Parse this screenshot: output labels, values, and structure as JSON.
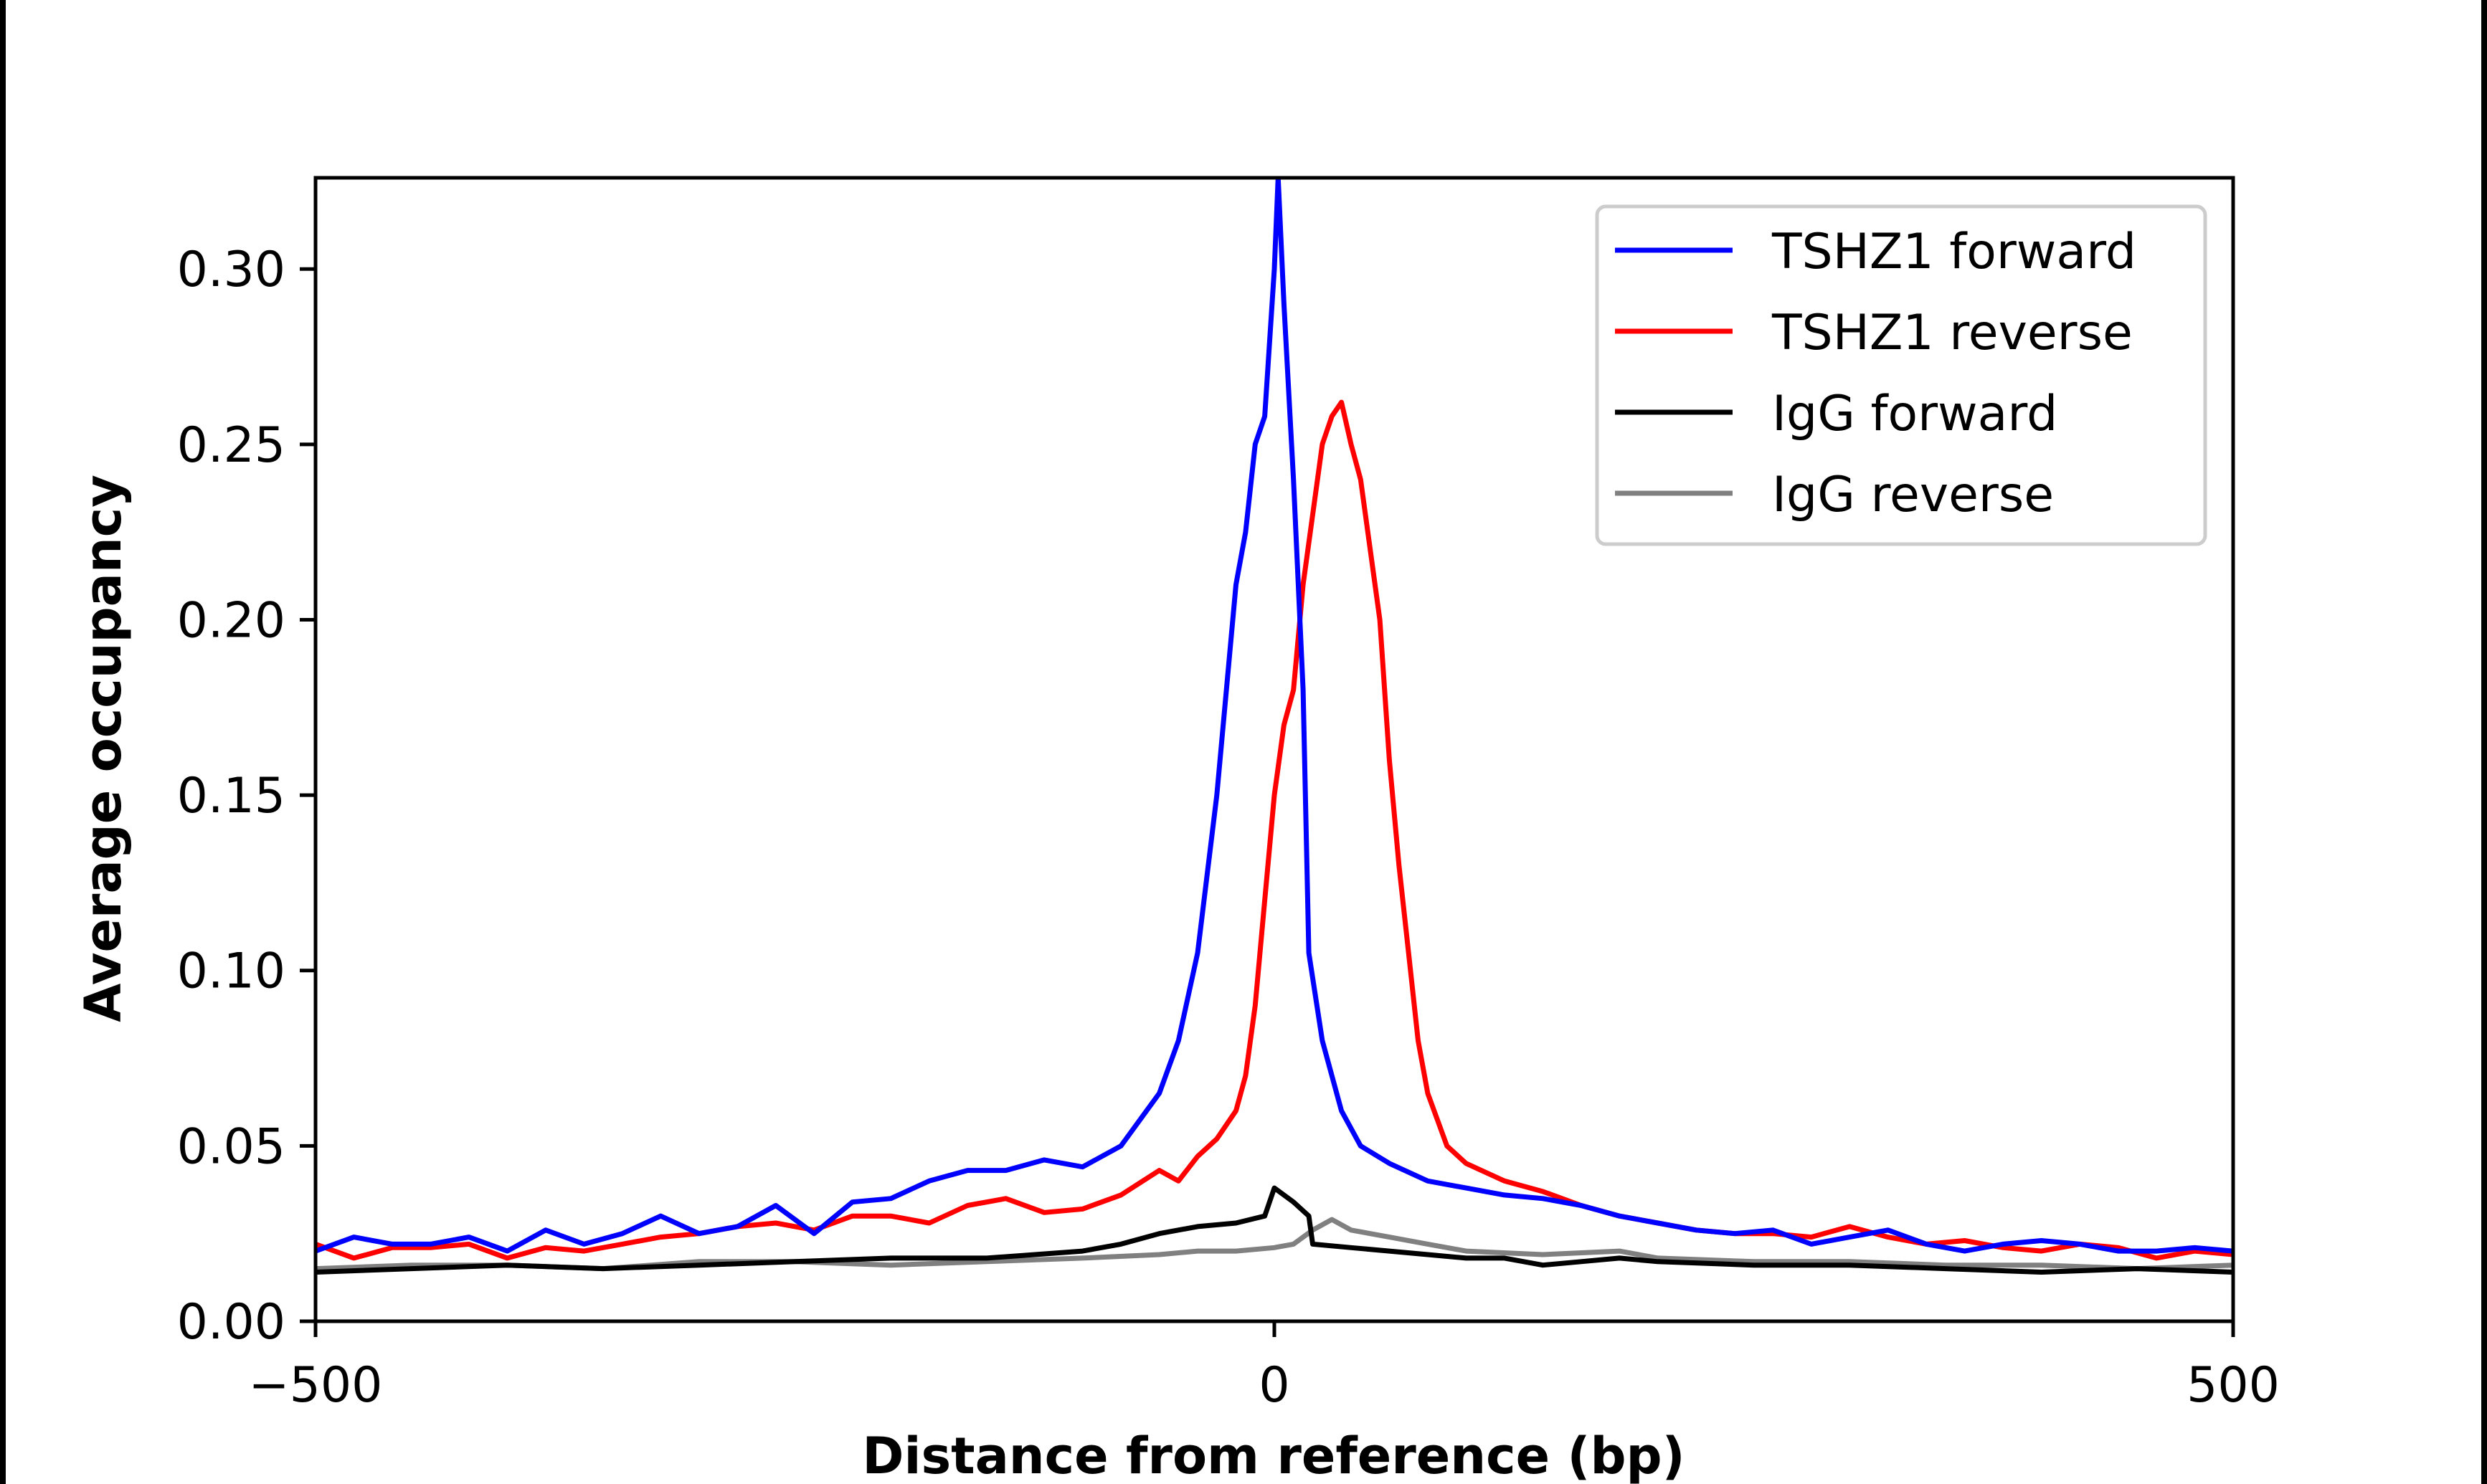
{
  "chart_data": {
    "type": "line",
    "title": "",
    "xlabel": "Distance from reference (bp)",
    "ylabel": "Average occupancy",
    "xlim": [
      -500,
      500
    ],
    "ylim": [
      0,
      0.326
    ],
    "xticks": [
      -500,
      0,
      500
    ],
    "xtick_labels": [
      "−500",
      "0",
      "500"
    ],
    "yticks": [
      0,
      0.05,
      0.1,
      0.15,
      0.2,
      0.25,
      0.3
    ],
    "ytick_labels": [
      "0.00",
      "0.05",
      "0.10",
      "0.15",
      "0.20",
      "0.25",
      "0.30"
    ],
    "grid": false,
    "legend_position": "top-right",
    "series": [
      {
        "name": "TSHZ1 forward",
        "color": "#0000ff",
        "x": [
          -500,
          -480,
          -460,
          -440,
          -420,
          -400,
          -380,
          -360,
          -340,
          -320,
          -300,
          -280,
          -260,
          -240,
          -220,
          -200,
          -180,
          -160,
          -140,
          -120,
          -100,
          -80,
          -60,
          -50,
          -40,
          -30,
          -20,
          -15,
          -10,
          -5,
          0,
          2,
          5,
          10,
          15,
          18,
          25,
          35,
          45,
          60,
          80,
          100,
          120,
          140,
          160,
          180,
          200,
          220,
          240,
          260,
          280,
          300,
          320,
          340,
          360,
          380,
          400,
          420,
          440,
          460,
          480,
          500
        ],
        "y": [
          0.02,
          0.024,
          0.022,
          0.022,
          0.024,
          0.02,
          0.026,
          0.022,
          0.025,
          0.03,
          0.025,
          0.027,
          0.033,
          0.025,
          0.034,
          0.035,
          0.04,
          0.043,
          0.043,
          0.046,
          0.044,
          0.05,
          0.065,
          0.08,
          0.105,
          0.15,
          0.21,
          0.225,
          0.25,
          0.258,
          0.3,
          0.326,
          0.29,
          0.24,
          0.18,
          0.105,
          0.08,
          0.06,
          0.05,
          0.045,
          0.04,
          0.038,
          0.036,
          0.035,
          0.033,
          0.03,
          0.028,
          0.026,
          0.025,
          0.026,
          0.022,
          0.024,
          0.026,
          0.022,
          0.02,
          0.022,
          0.023,
          0.022,
          0.02,
          0.02,
          0.021,
          0.02
        ]
      },
      {
        "name": "TSHZ1 reverse",
        "color": "#ff0000",
        "x": [
          -500,
          -480,
          -460,
          -440,
          -420,
          -400,
          -380,
          -360,
          -340,
          -320,
          -300,
          -280,
          -260,
          -240,
          -220,
          -200,
          -180,
          -160,
          -140,
          -120,
          -100,
          -80,
          -60,
          -50,
          -40,
          -30,
          -20,
          -15,
          -10,
          -5,
          0,
          5,
          10,
          15,
          20,
          25,
          30,
          35,
          40,
          45,
          50,
          55,
          60,
          65,
          70,
          75,
          80,
          90,
          100,
          120,
          140,
          160,
          180,
          200,
          220,
          240,
          260,
          280,
          300,
          320,
          340,
          360,
          380,
          400,
          420,
          440,
          460,
          480,
          500
        ],
        "y": [
          0.022,
          0.018,
          0.021,
          0.021,
          0.022,
          0.018,
          0.021,
          0.02,
          0.022,
          0.024,
          0.025,
          0.027,
          0.028,
          0.026,
          0.03,
          0.03,
          0.028,
          0.033,
          0.035,
          0.031,
          0.032,
          0.036,
          0.043,
          0.04,
          0.047,
          0.052,
          0.06,
          0.07,
          0.09,
          0.12,
          0.15,
          0.17,
          0.18,
          0.21,
          0.23,
          0.25,
          0.258,
          0.262,
          0.25,
          0.24,
          0.22,
          0.2,
          0.16,
          0.13,
          0.105,
          0.08,
          0.065,
          0.05,
          0.045,
          0.04,
          0.037,
          0.033,
          0.03,
          0.028,
          0.026,
          0.025,
          0.025,
          0.024,
          0.027,
          0.024,
          0.022,
          0.023,
          0.021,
          0.02,
          0.022,
          0.021,
          0.018,
          0.02,
          0.019
        ]
      },
      {
        "name": "IgG forward",
        "color": "#000000",
        "x": [
          -500,
          -450,
          -400,
          -350,
          -300,
          -250,
          -200,
          -150,
          -100,
          -80,
          -60,
          -40,
          -20,
          -5,
          0,
          10,
          18,
          20,
          40,
          60,
          80,
          100,
          120,
          140,
          160,
          180,
          200,
          250,
          300,
          350,
          400,
          450,
          500
        ],
        "y": [
          0.014,
          0.015,
          0.016,
          0.015,
          0.016,
          0.017,
          0.018,
          0.018,
          0.02,
          0.022,
          0.025,
          0.027,
          0.028,
          0.03,
          0.038,
          0.034,
          0.03,
          0.022,
          0.021,
          0.02,
          0.019,
          0.018,
          0.018,
          0.016,
          0.017,
          0.018,
          0.017,
          0.016,
          0.016,
          0.015,
          0.014,
          0.015,
          0.014
        ]
      },
      {
        "name": "IgG reverse",
        "color": "#808080",
        "x": [
          -500,
          -450,
          -400,
          -350,
          -300,
          -250,
          -200,
          -150,
          -100,
          -60,
          -40,
          -20,
          0,
          10,
          20,
          30,
          40,
          60,
          80,
          100,
          140,
          180,
          200,
          250,
          300,
          350,
          400,
          450,
          500
        ],
        "y": [
          0.015,
          0.016,
          0.016,
          0.015,
          0.017,
          0.017,
          0.016,
          0.017,
          0.018,
          0.019,
          0.02,
          0.02,
          0.021,
          0.022,
          0.026,
          0.029,
          0.026,
          0.024,
          0.022,
          0.02,
          0.019,
          0.02,
          0.018,
          0.017,
          0.017,
          0.016,
          0.016,
          0.015,
          0.016
        ]
      }
    ]
  }
}
